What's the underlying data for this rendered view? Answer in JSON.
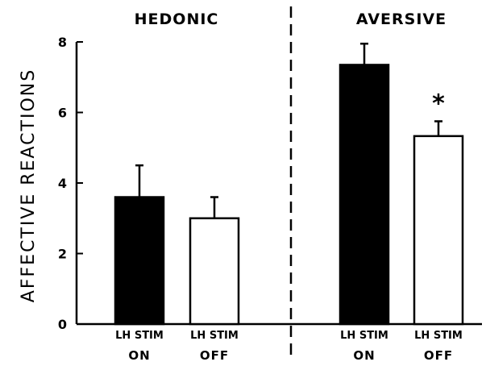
{
  "chart_data": {
    "type": "bar",
    "ylabel": "AFFECTIVE  REACTIONS",
    "ylim": [
      0,
      8
    ],
    "yticks": [
      "0",
      "2",
      "4",
      "6",
      "8"
    ],
    "panels": [
      {
        "title": "HEDONIC",
        "categories": [
          {
            "line1": "LH STIM",
            "line2": "ON"
          },
          {
            "line1": "LH STIM",
            "line2": "OFF"
          }
        ],
        "values": [
          3.6,
          3.0
        ],
        "errors": [
          0.9,
          0.6
        ],
        "fills": [
          "#000000",
          "#ffffff"
        ],
        "annotations": [
          "",
          ""
        ]
      },
      {
        "title": "AVERSIVE",
        "categories": [
          {
            "line1": "LH STIM",
            "line2": "ON"
          },
          {
            "line1": "LH STIM",
            "line2": "OFF"
          }
        ],
        "values": [
          7.35,
          5.33
        ],
        "errors": [
          0.6,
          0.42
        ],
        "fills": [
          "#000000",
          "#ffffff"
        ],
        "annotations": [
          "",
          "*"
        ]
      }
    ],
    "divider": "dashed vertical line between panels",
    "grid": false,
    "legend": "none"
  }
}
